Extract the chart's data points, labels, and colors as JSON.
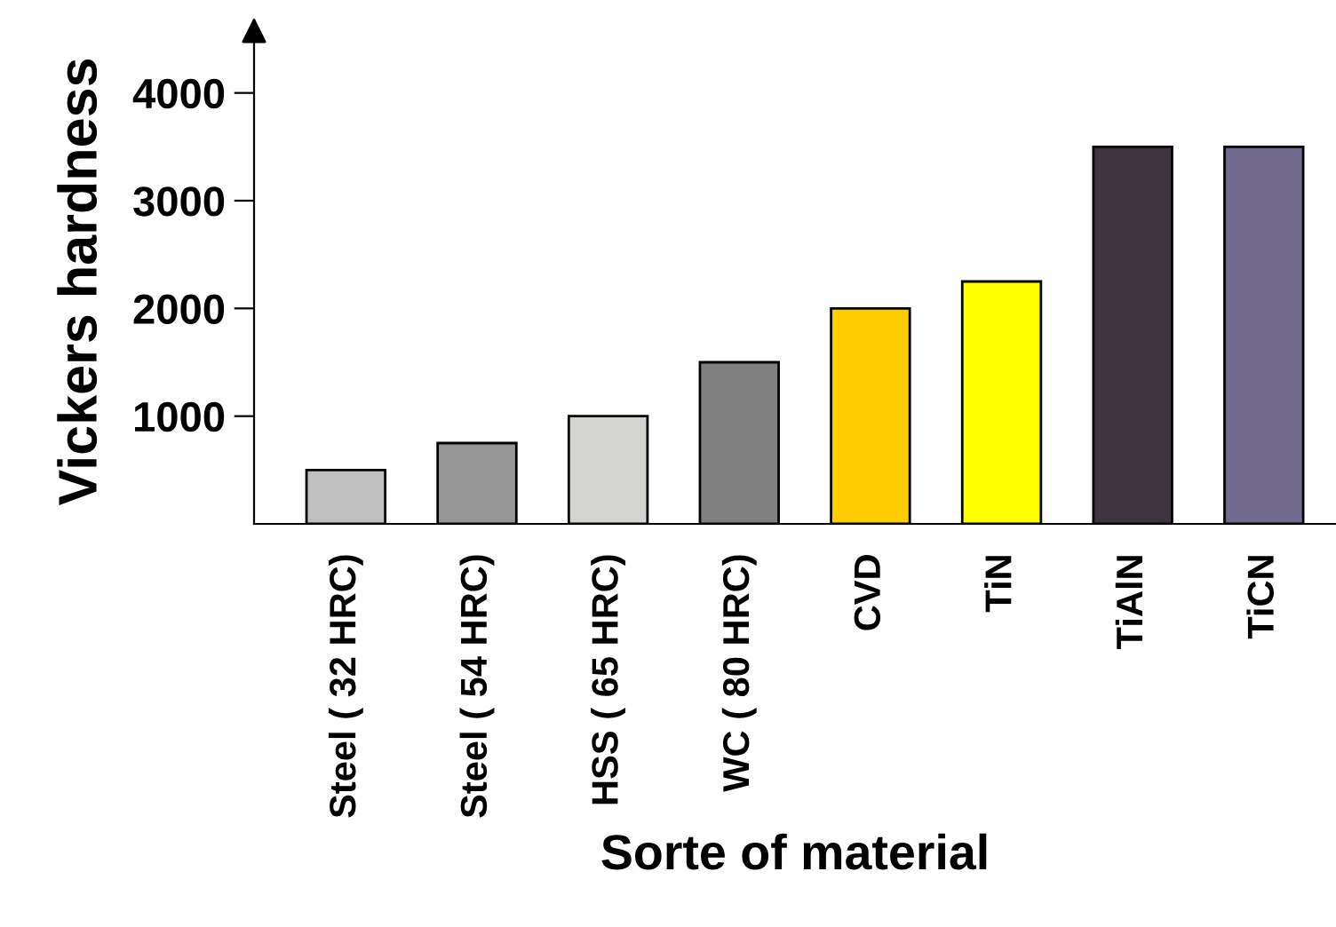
{
  "chart_data": {
    "type": "bar",
    "xlabel": "Sorte of material",
    "ylabel": "Vickers hardness",
    "categories": [
      "Steel ( 32 HRC)",
      "Steel ( 54 HRC)",
      "HSS ( 65 HRC)",
      "WC ( 80 HRC)",
      "CVD",
      "TiN",
      "TiAlN",
      "TiCN"
    ],
    "values": [
      500,
      750,
      1000,
      1500,
      2000,
      2250,
      3500,
      3500
    ],
    "colors": [
      "#c0c0c0",
      "#969696",
      "#d4d4d0",
      "#808080",
      "#ffcc00",
      "#ffff00",
      "#3f3340",
      "#716a8e"
    ],
    "ylim": [
      0,
      4500
    ],
    "yticks": [
      1000,
      2000,
      3000,
      4000
    ],
    "grid": false
  }
}
